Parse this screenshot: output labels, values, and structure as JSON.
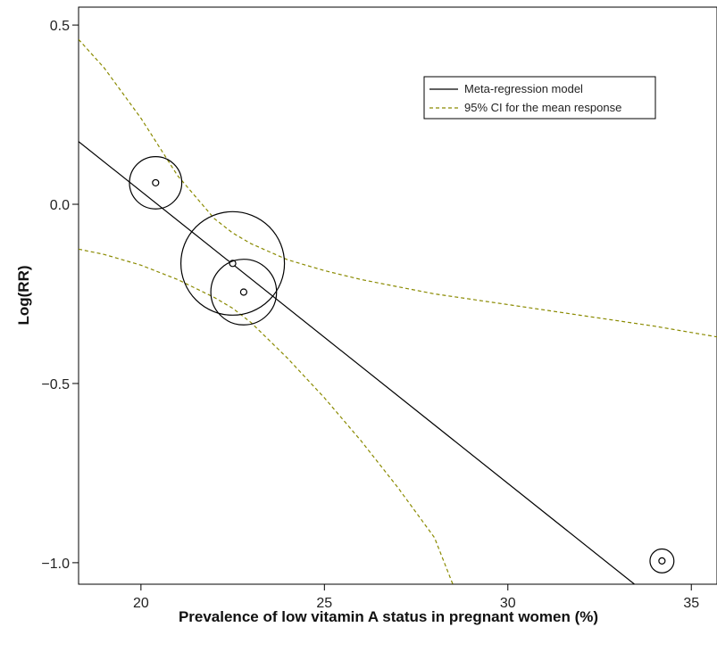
{
  "chart_data": {
    "type": "scatter",
    "xlabel": "Prevalence of low vitamin A status in pregnant women (%)",
    "ylabel": "Log(RR)",
    "xlim": [
      18.3,
      35.7
    ],
    "ylim": [
      -1.06,
      0.55
    ],
    "x_ticks": [
      20,
      25,
      30,
      35
    ],
    "x_tick_labels": [
      "20",
      "25",
      "30",
      "35"
    ],
    "y_ticks": [
      0.5,
      0.0,
      -0.5,
      -1.0
    ],
    "y_tick_labels": [
      "0.5",
      "0.0",
      "−0.5",
      "−1.0"
    ],
    "grid": false,
    "legend": {
      "placement": "top-right",
      "entries": [
        {
          "label": "Meta-regression model",
          "style": "solid",
          "color": "#000000"
        },
        {
          "label": "95% CI for the mean response",
          "style": "dashed",
          "color": "#8a8a00"
        }
      ]
    },
    "series": [
      {
        "name": "Meta-regression model",
        "kind": "line",
        "color": "#000000",
        "x": [
          18.3,
          33.45
        ],
        "y": [
          0.175,
          -1.06
        ]
      },
      {
        "name": "95% CI for the mean response",
        "kind": "dashed-line",
        "color": "#8a8a00",
        "x": [
          18.3,
          19.0,
          20.0,
          21.0,
          22.0,
          22.5,
          23.0,
          24.0,
          25.0,
          26.0,
          27.0,
          28.0,
          30.0,
          32.0,
          34.0,
          35.7
        ],
        "y": [
          0.46,
          0.38,
          0.24,
          0.08,
          -0.04,
          -0.08,
          -0.11,
          -0.155,
          -0.185,
          -0.21,
          -0.23,
          -0.25,
          -0.28,
          -0.31,
          -0.34,
          -0.37
        ]
      },
      {
        "name": "95% CI for the mean response",
        "kind": "dashed-line",
        "color": "#8a8a00",
        "x": [
          18.3,
          19.0,
          20.0,
          21.0,
          22.0,
          22.5,
          23.0,
          24.0,
          25.0,
          26.0,
          27.0,
          28.0,
          28.5
        ],
        "y": [
          -0.125,
          -0.14,
          -0.17,
          -0.21,
          -0.26,
          -0.29,
          -0.33,
          -0.43,
          -0.54,
          -0.66,
          -0.79,
          -0.93,
          -1.06
        ]
      }
    ],
    "studies": [
      {
        "x": 20.4,
        "y": 0.06,
        "weight": 0.2
      },
      {
        "x": 22.5,
        "y": -0.165,
        "weight": 1.0
      },
      {
        "x": 22.8,
        "y": -0.245,
        "weight": 0.35
      },
      {
        "x": 34.2,
        "y": -0.995,
        "weight": 0.02
      }
    ]
  }
}
